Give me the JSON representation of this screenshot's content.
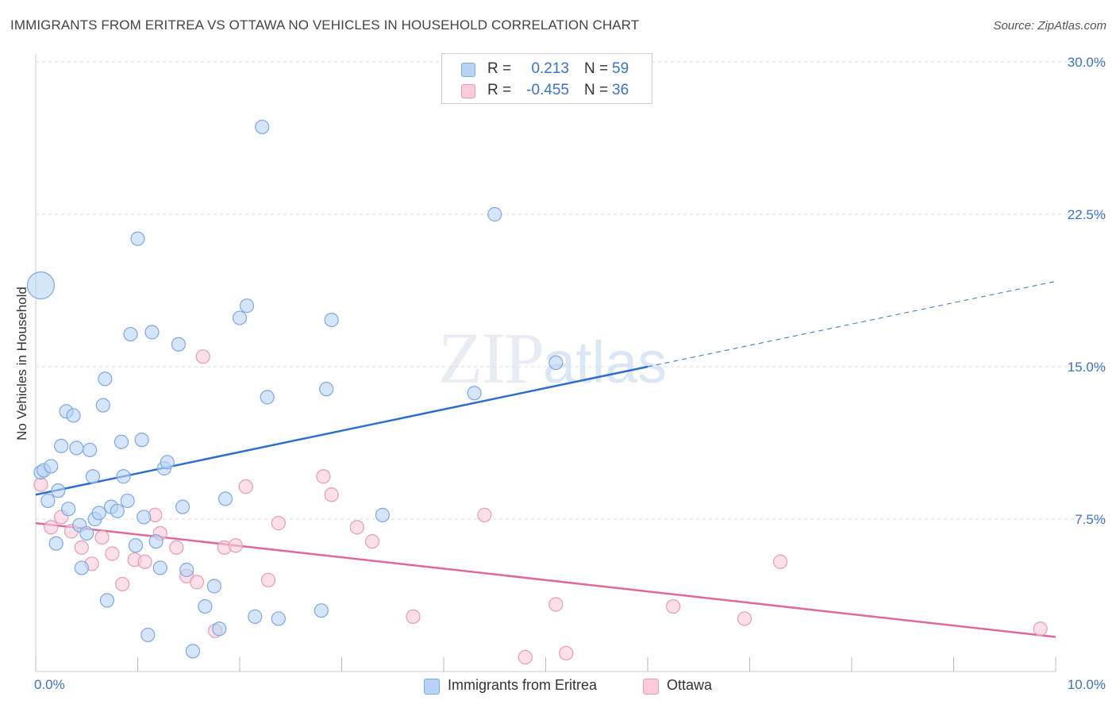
{
  "header": {
    "title": "IMMIGRANTS FROM ERITREA VS OTTAWA NO VEHICLES IN HOUSEHOLD CORRELATION CHART",
    "source": "Source: ZipAtlas.com"
  },
  "watermark": {
    "zip": "ZIP",
    "atlas": "atlas"
  },
  "stats": {
    "r_label": "R =",
    "n_label": "N =",
    "rows": [
      {
        "r": "0.213",
        "n": "59"
      },
      {
        "r": "-0.455",
        "n": "36"
      }
    ]
  },
  "legend": {
    "items": [
      {
        "label": "Immigrants from Eritrea"
      },
      {
        "label": "Ottawa"
      }
    ]
  },
  "colors": {
    "blue_fill": "#b9d3f6",
    "blue_stroke": "#7fa7e0",
    "blue_line": "#2f6fcc",
    "pink_fill": "#f9cbdb",
    "pink_stroke": "#eb9ab6",
    "pink_line": "#e0699a",
    "tick_label": "#3a74c4",
    "grid": "#dddddd"
  },
  "chart_data": {
    "type": "scatter",
    "ylabel": "No Vehicles in Household",
    "xlim": [
      0,
      10
    ],
    "ylim": [
      0,
      30
    ],
    "y_ticks": [
      7.5,
      15.0,
      22.5,
      30.0
    ],
    "y_tick_labels": [
      "7.5%",
      "15.0%",
      "22.5%",
      "30.0%"
    ],
    "x_tick_labels": [
      "0.0%",
      "10.0%"
    ],
    "grid": "horizontal dashed",
    "legend_position": "bottom",
    "series": [
      {
        "name": "Immigrants from Eritrea",
        "trend": {
          "x0": 0,
          "y0": 8.7,
          "x1": 6.0,
          "y1": 15.0,
          "dashed_to_x": 10,
          "dashed_to_y": 19.2
        },
        "points": [
          [
            0.05,
            19.0
          ],
          [
            0.05,
            9.8
          ],
          [
            0.08,
            9.9
          ],
          [
            0.12,
            8.4
          ],
          [
            0.15,
            10.1
          ],
          [
            0.2,
            6.3
          ],
          [
            0.22,
            8.9
          ],
          [
            0.25,
            11.1
          ],
          [
            0.3,
            12.8
          ],
          [
            0.32,
            8.0
          ],
          [
            0.37,
            12.6
          ],
          [
            0.4,
            11.0
          ],
          [
            0.43,
            7.2
          ],
          [
            0.45,
            5.1
          ],
          [
            0.5,
            6.8
          ],
          [
            0.53,
            10.9
          ],
          [
            0.56,
            9.6
          ],
          [
            0.58,
            7.5
          ],
          [
            0.62,
            7.8
          ],
          [
            0.66,
            13.1
          ],
          [
            0.68,
            14.4
          ],
          [
            0.7,
            3.5
          ],
          [
            0.74,
            8.1
          ],
          [
            0.8,
            7.9
          ],
          [
            0.84,
            11.3
          ],
          [
            0.86,
            9.6
          ],
          [
            0.9,
            8.4
          ],
          [
            0.93,
            16.6
          ],
          [
            0.98,
            6.2
          ],
          [
            1.0,
            21.3
          ],
          [
            1.04,
            11.4
          ],
          [
            1.06,
            7.6
          ],
          [
            1.1,
            1.8
          ],
          [
            1.14,
            16.7
          ],
          [
            1.18,
            6.4
          ],
          [
            1.22,
            5.1
          ],
          [
            1.26,
            10.0
          ],
          [
            1.29,
            10.3
          ],
          [
            1.4,
            16.1
          ],
          [
            1.44,
            8.1
          ],
          [
            1.48,
            5.0
          ],
          [
            1.54,
            1.0
          ],
          [
            1.66,
            3.2
          ],
          [
            1.75,
            4.2
          ],
          [
            1.8,
            2.1
          ],
          [
            1.86,
            8.5
          ],
          [
            2.0,
            17.4
          ],
          [
            2.07,
            18.0
          ],
          [
            2.15,
            2.7
          ],
          [
            2.22,
            26.8
          ],
          [
            2.27,
            13.5
          ],
          [
            2.38,
            2.6
          ],
          [
            2.8,
            3.0
          ],
          [
            2.85,
            13.9
          ],
          [
            2.9,
            17.3
          ],
          [
            3.4,
            7.7
          ],
          [
            4.3,
            13.7
          ],
          [
            4.5,
            22.5
          ],
          [
            5.1,
            15.2
          ]
        ]
      },
      {
        "name": "Ottawa",
        "trend": {
          "x0": 0,
          "y0": 7.3,
          "x1": 10,
          "y1": 1.7
        },
        "points": [
          [
            0.05,
            9.2
          ],
          [
            0.15,
            7.1
          ],
          [
            0.25,
            7.6
          ],
          [
            0.35,
            6.9
          ],
          [
            0.45,
            6.1
          ],
          [
            0.55,
            5.3
          ],
          [
            0.65,
            6.6
          ],
          [
            0.75,
            5.8
          ],
          [
            0.85,
            4.3
          ],
          [
            0.97,
            5.5
          ],
          [
            1.07,
            5.4
          ],
          [
            1.17,
            7.7
          ],
          [
            1.22,
            6.8
          ],
          [
            1.38,
            6.1
          ],
          [
            1.48,
            4.7
          ],
          [
            1.58,
            4.4
          ],
          [
            1.64,
            15.5
          ],
          [
            1.76,
            2.0
          ],
          [
            1.85,
            6.1
          ],
          [
            1.96,
            6.2
          ],
          [
            2.06,
            9.1
          ],
          [
            2.28,
            4.5
          ],
          [
            2.38,
            7.3
          ],
          [
            2.82,
            9.6
          ],
          [
            2.9,
            8.7
          ],
          [
            3.15,
            7.1
          ],
          [
            3.3,
            6.4
          ],
          [
            3.7,
            2.7
          ],
          [
            4.4,
            7.7
          ],
          [
            4.8,
            0.7
          ],
          [
            5.1,
            3.3
          ],
          [
            5.2,
            0.9
          ],
          [
            6.25,
            3.2
          ],
          [
            6.95,
            2.6
          ],
          [
            7.3,
            5.4
          ],
          [
            9.85,
            2.1
          ]
        ]
      }
    ]
  }
}
